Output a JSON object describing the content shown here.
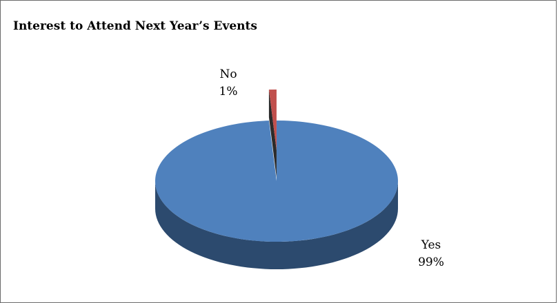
{
  "chart_data": {
    "type": "pie",
    "title": "Interest to Attend Next Year’s Events",
    "style": "3d-exploded",
    "slices": [
      {
        "label": "Yes",
        "value": 99,
        "value_label": "99%",
        "color": "#4f81bd",
        "side_color": "#2c4a6e"
      },
      {
        "label": "No",
        "value": 1,
        "value_label": "1%",
        "color": "#c0504d",
        "side_color": "#7a2e2c"
      }
    ],
    "legend": "none"
  }
}
